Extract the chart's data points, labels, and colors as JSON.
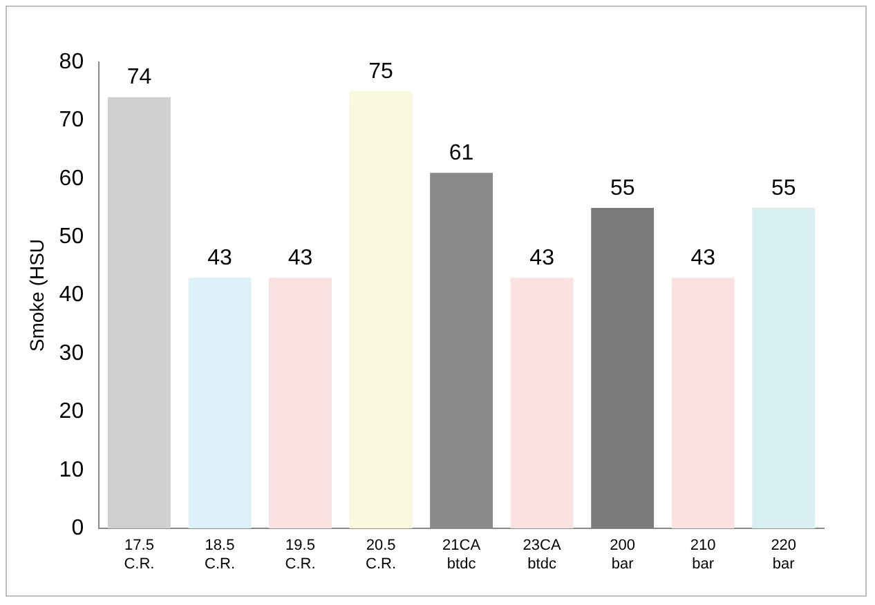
{
  "chart_data": {
    "type": "bar",
    "ylabel": "Smoke (HSU",
    "categories": [
      "17.5 C.R.",
      "18.5 C.R.",
      "19.5 C.R.",
      "20.5 C.R.",
      "21CA btdc",
      "23CA btdc",
      "200 bar",
      "210 bar",
      "220 bar"
    ],
    "values": [
      74,
      43,
      43,
      75,
      61,
      43,
      55,
      43,
      55
    ],
    "colors": [
      "#d0d0d0",
      "#dcf2f8",
      "#fbe2e2",
      "#f8f8dc",
      "#8a8a8a",
      "#fbe2e2",
      "#7a7a7a",
      "#fbe2e2",
      "#d8f0f2"
    ],
    "ylim": [
      0,
      80
    ],
    "yticks": [
      0,
      10,
      20,
      30,
      40,
      50,
      60,
      70,
      80
    ],
    "grid": false,
    "legend": false,
    "data_labels": true
  }
}
